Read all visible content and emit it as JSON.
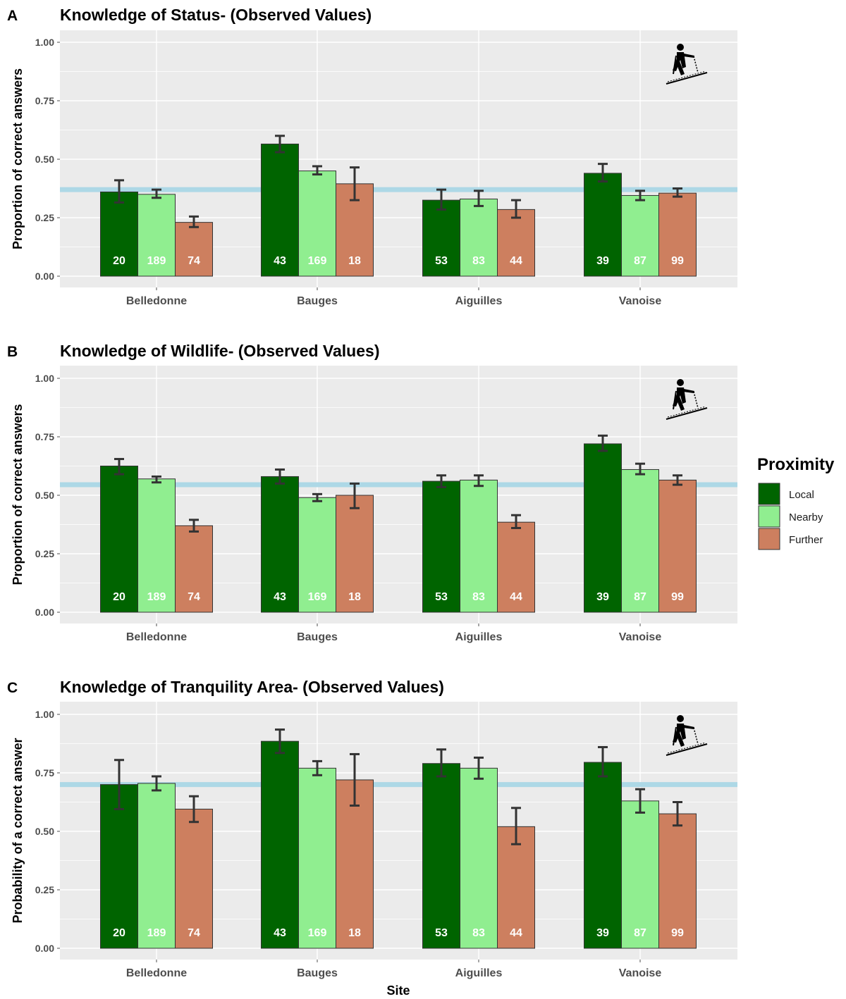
{
  "x_label": "Site",
  "legend": {
    "title": "Proximity",
    "entries": [
      {
        "label": "Local",
        "color": "#006400"
      },
      {
        "label": "Nearby",
        "color": "#90ee90"
      },
      {
        "label": "Further",
        "color": "#cd7f5f"
      }
    ]
  },
  "colors": {
    "panel_background": "#ebebeb",
    "grid": "#ffffff",
    "reference_line": "#add8e6",
    "error_bar": "#333333",
    "bar_outline": "#333333",
    "count_text": "#ffffff"
  },
  "icon": "ski-touring-icon",
  "chart_data": [
    {
      "type": "bar",
      "panel_letter": "A",
      "title": "Knowledge of Status- (Observed Values)",
      "ylabel": "Proportion of correct answers",
      "xlabel": "",
      "ylim": [
        0,
        1.05
      ],
      "yticks": [
        "0.00",
        "0.25",
        "0.50",
        "0.75",
        "1.00"
      ],
      "reference_line": 0.37,
      "grid": true,
      "legend": "right",
      "categories": [
        "Belledonne",
        "Bauges",
        "Aiguilles",
        "Vanoise"
      ],
      "series": [
        {
          "name": "Local",
          "values": [
            0.36,
            0.565,
            0.325,
            0.44
          ],
          "error_low": [
            0.315,
            0.53,
            0.285,
            0.405
          ],
          "error_high": [
            0.41,
            0.6,
            0.37,
            0.48
          ],
          "counts": [
            "20",
            "43",
            "53",
            "39"
          ]
        },
        {
          "name": "Nearby",
          "values": [
            0.35,
            0.45,
            0.33,
            0.345
          ],
          "error_low": [
            0.335,
            0.435,
            0.3,
            0.325
          ],
          "error_high": [
            0.37,
            0.47,
            0.365,
            0.365
          ],
          "counts": [
            "189",
            "169",
            "83",
            "87"
          ]
        },
        {
          "name": "Further",
          "values": [
            0.23,
            0.395,
            0.285,
            0.355
          ],
          "error_low": [
            0.21,
            0.325,
            0.25,
            0.34
          ],
          "error_high": [
            0.255,
            0.465,
            0.325,
            0.375
          ],
          "counts": [
            "74",
            "18",
            "44",
            "99"
          ]
        }
      ]
    },
    {
      "type": "bar",
      "panel_letter": "B",
      "title": "Knowledge of Wildlife- (Observed Values)",
      "ylabel": "Proportion of correct answers",
      "xlabel": "",
      "ylim": [
        0,
        1.05
      ],
      "yticks": [
        "0.00",
        "0.25",
        "0.50",
        "0.75",
        "1.00"
      ],
      "reference_line": 0.545,
      "grid": true,
      "legend": "right",
      "categories": [
        "Belledonne",
        "Bauges",
        "Aiguilles",
        "Vanoise"
      ],
      "series": [
        {
          "name": "Local",
          "values": [
            0.625,
            0.58,
            0.56,
            0.72
          ],
          "error_low": [
            0.59,
            0.55,
            0.535,
            0.69
          ],
          "error_high": [
            0.655,
            0.61,
            0.585,
            0.755
          ],
          "counts": [
            "20",
            "43",
            "53",
            "39"
          ]
        },
        {
          "name": "Nearby",
          "values": [
            0.57,
            0.49,
            0.565,
            0.61
          ],
          "error_low": [
            0.555,
            0.475,
            0.54,
            0.59
          ],
          "error_high": [
            0.58,
            0.505,
            0.585,
            0.635
          ],
          "counts": [
            "189",
            "169",
            "83",
            "87"
          ]
        },
        {
          "name": "Further",
          "values": [
            0.37,
            0.5,
            0.385,
            0.565
          ],
          "error_low": [
            0.345,
            0.445,
            0.36,
            0.545
          ],
          "error_high": [
            0.395,
            0.55,
            0.415,
            0.585
          ],
          "counts": [
            "74",
            "18",
            "44",
            "99"
          ]
        }
      ]
    },
    {
      "type": "bar",
      "panel_letter": "C",
      "title": "Knowledge of Tranquility Area- (Observed Values)",
      "ylabel": "Probability of a correct answer",
      "xlabel": "Site",
      "ylim": [
        0,
        1.05
      ],
      "yticks": [
        "0.00",
        "0.25",
        "0.50",
        "0.75",
        "1.00"
      ],
      "reference_line": 0.7,
      "grid": true,
      "legend": "right",
      "categories": [
        "Belledonne",
        "Bauges",
        "Aiguilles",
        "Vanoise"
      ],
      "series": [
        {
          "name": "Local",
          "values": [
            0.7,
            0.885,
            0.79,
            0.795
          ],
          "error_low": [
            0.595,
            0.835,
            0.735,
            0.735
          ],
          "error_high": [
            0.805,
            0.935,
            0.85,
            0.86
          ],
          "counts": [
            "20",
            "43",
            "53",
            "39"
          ]
        },
        {
          "name": "Nearby",
          "values": [
            0.705,
            0.77,
            0.77,
            0.63
          ],
          "error_low": [
            0.675,
            0.74,
            0.725,
            0.58
          ],
          "error_high": [
            0.735,
            0.8,
            0.815,
            0.68
          ],
          "counts": [
            "189",
            "169",
            "83",
            "87"
          ]
        },
        {
          "name": "Further",
          "values": [
            0.595,
            0.72,
            0.52,
            0.575
          ],
          "error_low": [
            0.54,
            0.61,
            0.445,
            0.525
          ],
          "error_high": [
            0.65,
            0.83,
            0.6,
            0.625
          ],
          "counts": [
            "74",
            "18",
            "44",
            "99"
          ]
        }
      ]
    }
  ]
}
